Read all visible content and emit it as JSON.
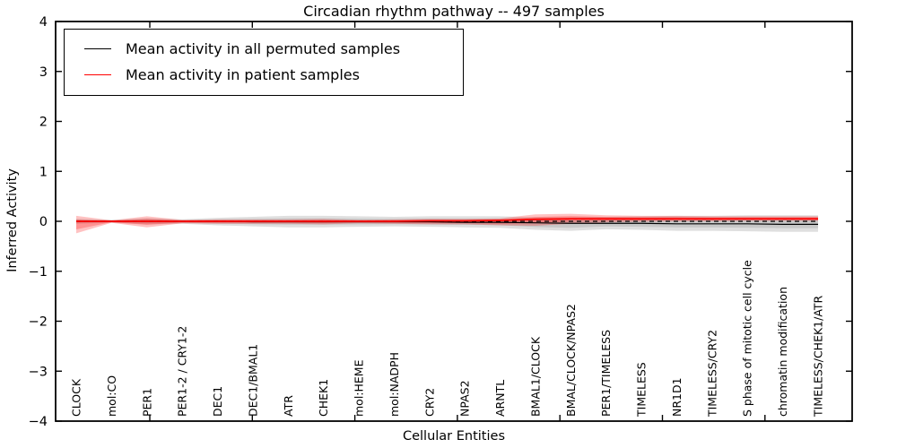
{
  "chart_data": {
    "type": "line",
    "title": "Circadian rhythm pathway -- 497 samples",
    "xlabel": "Cellular Entities",
    "ylabel": "Inferred Activity",
    "ylim": [
      -4,
      4
    ],
    "yticks": [
      -4,
      -3,
      -2,
      -1,
      0,
      1,
      2,
      3,
      4
    ],
    "grid": false,
    "legend_position": "upper left",
    "categories": [
      "CLOCK",
      "mol:CO",
      "PER1",
      "PER1-2 / CRY1-2",
      "DEC1",
      "DEC1/BMAL1",
      "ATR",
      "CHEK1",
      "mol:HEME",
      "mol:NADPH",
      "CRY2",
      "NPAS2",
      "ARNTL",
      "BMAL1/CLOCK",
      "BMAL/CLOCK/NPAS2",
      "PER1/TIMELESS",
      "TIMELESS",
      "NR1D1",
      "TIMELESS/CRY2",
      "S phase of mitotic cell cycle",
      "chromatin modification",
      "TIMELESS/CHEK1/ATR"
    ],
    "series": [
      {
        "id": "permuted-mean",
        "name": "Mean activity in all permuted samples",
        "color": "#000000",
        "values": [
          0,
          0,
          0,
          0,
          0,
          -0.01,
          -0.01,
          -0.01,
          -0.01,
          -0.01,
          -0.01,
          -0.02,
          -0.02,
          -0.03,
          -0.04,
          -0.04,
          -0.04,
          -0.05,
          -0.05,
          -0.05,
          -0.06,
          -0.06
        ]
      },
      {
        "id": "patient-mean",
        "name": "Mean activity in patient samples",
        "color": "#ff0000",
        "values": [
          0,
          0,
          0,
          0,
          0,
          0,
          0,
          0,
          0,
          0,
          0.01,
          0.01,
          0.02,
          0.04,
          0.05,
          0.05,
          0.05,
          0.05,
          0.05,
          0.05,
          0.05,
          0.05
        ]
      }
    ],
    "bands": [
      {
        "id": "permuted-spread",
        "name": "Spread of permuted samples",
        "color": "#8c8c8c",
        "opacity": 0.28,
        "upper": [
          0.05,
          0.03,
          0.06,
          0.04,
          0.07,
          0.09,
          0.11,
          0.11,
          0.1,
          0.09,
          0.1,
          0.1,
          0.1,
          0.08,
          0.08,
          0.09,
          0.1,
          0.11,
          0.11,
          0.12,
          0.12,
          0.12
        ],
        "lower": [
          -0.05,
          -0.03,
          -0.06,
          -0.05,
          -0.08,
          -0.1,
          -0.12,
          -0.12,
          -0.11,
          -0.1,
          -0.11,
          -0.12,
          -0.13,
          -0.17,
          -0.19,
          -0.16,
          -0.17,
          -0.19,
          -0.19,
          -0.2,
          -0.21,
          -0.21
        ]
      },
      {
        "id": "patient-spread",
        "name": "Spread of patient samples",
        "color": "#ff0000",
        "opacity": 0.24,
        "upper": [
          0.11,
          0.02,
          0.1,
          0.03,
          0.04,
          0.04,
          0.04,
          0.05,
          0.03,
          0.04,
          0.05,
          0.05,
          0.06,
          0.14,
          0.15,
          0.12,
          0.11,
          0.11,
          0.1,
          0.1,
          0.1,
          0.1
        ],
        "lower": [
          -0.24,
          -0.03,
          -0.12,
          -0.04,
          -0.05,
          -0.05,
          -0.05,
          -0.06,
          -0.04,
          -0.05,
          -0.06,
          -0.06,
          -0.08,
          -0.09,
          -0.05,
          -0.02,
          -0.01,
          0.0,
          0.0,
          0.01,
          0.01,
          0.01
        ]
      }
    ],
    "zero_line": {
      "style": "dashed",
      "color": "#000000"
    }
  }
}
